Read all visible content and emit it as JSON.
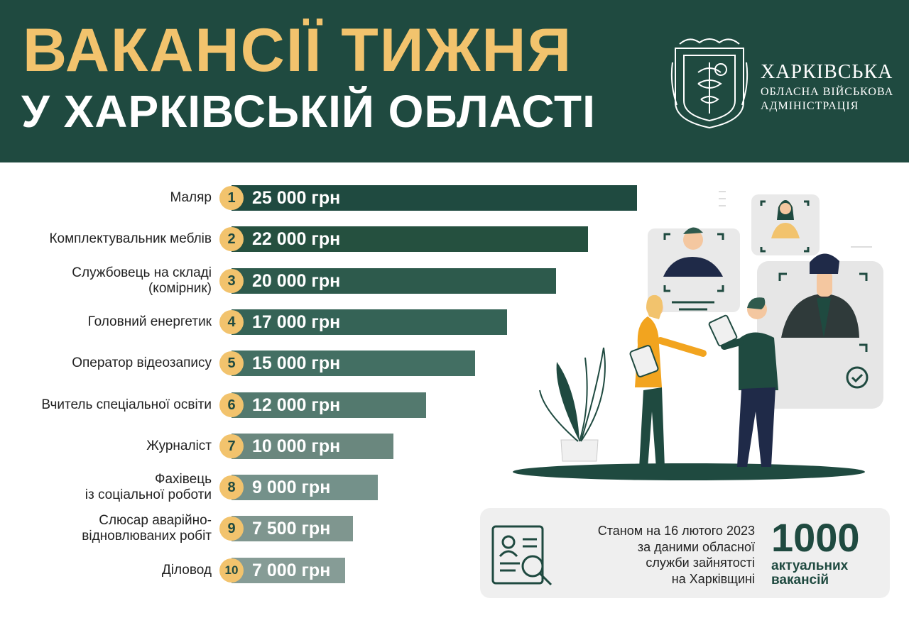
{
  "header": {
    "title_line1": "ВАКАНСІЇ ТИЖНЯ",
    "title_line2": "У ХАРКІВСЬКІЙ ОБЛАСТІ",
    "org_line1": "ХАРКІВСЬКА",
    "org_line2": "ОБЛАСНА ВІЙСЬКОВА",
    "org_line3": "АДМІНІСТРАЦІЯ"
  },
  "colors": {
    "header_bg": "#1f4a40",
    "accent_yellow": "#f2c36d",
    "bar_colors": [
      "#1f4a40",
      "#25503f",
      "#2d5a4c",
      "#356356",
      "#436f63",
      "#53796e",
      "#6a877e",
      "#74918a",
      "#7f968f",
      "#869c96"
    ]
  },
  "chart_data": {
    "type": "bar",
    "orientation": "horizontal",
    "unit": "грн",
    "categories": [
      "Маляр",
      "Комплектувальник меблів",
      "Службовець на складі\n(комірник)",
      "Головний енергетик",
      "Оператор відеозапису",
      "Вчитель спеціальної освіти",
      "Журналіст",
      "Фахівець\nіз соціальної роботи",
      "Слюсар аварійно-\nвідновлюваних робіт",
      "Діловод"
    ],
    "ranks": [
      "1",
      "2",
      "3",
      "4",
      "5",
      "6",
      "7",
      "8",
      "9",
      "10"
    ],
    "values": [
      25000,
      22000,
      20000,
      17000,
      15000,
      12000,
      10000,
      9000,
      7500,
      7000
    ],
    "value_labels": [
      "25 000 грн",
      "22 000 грн",
      "20 000 грн",
      "17 000 грн",
      "15 000 грн",
      "12 000 грн",
      "10 000 грн",
      "9 000 грн",
      "7 500 грн",
      "7 000 грн"
    ]
  },
  "info": {
    "line1": "Станом на 16 лютого 2023",
    "line2": "за даними обласної",
    "line3": "служби зайнятості",
    "line4": "на Харківщині",
    "count": "1000",
    "count_label1": "актуальних",
    "count_label2": "вакансій"
  },
  "icons": {
    "emblem": "kharkiv-coat-of-arms-icon",
    "document": "resume-search-icon"
  }
}
